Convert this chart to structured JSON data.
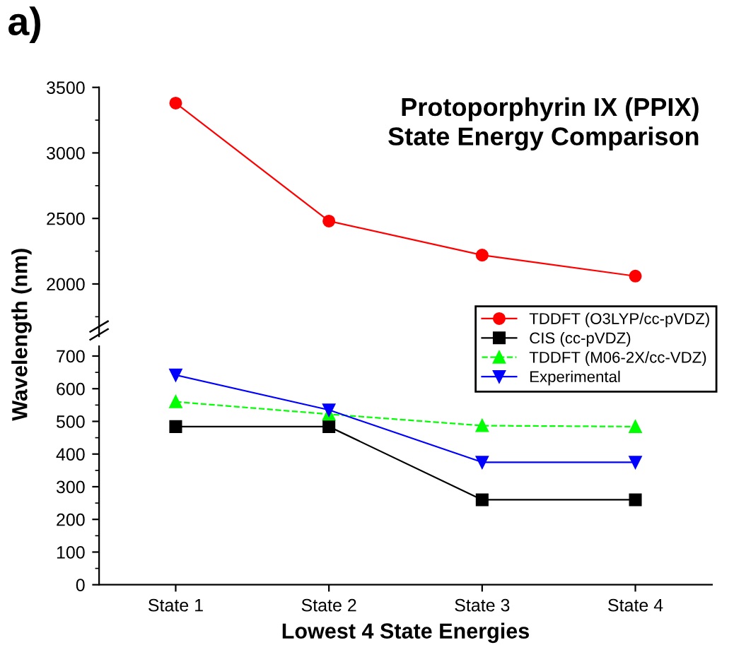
{
  "chart_data": [
    {
      "type": "line",
      "title": "Protoporphyrin IX (PPIX)\nState Energy Comparison",
      "annotations": [
        "a)"
      ],
      "categories": [
        null,
        null,
        null,
        null
      ],
      "ylim": [
        1600,
        3500
      ],
      "yticks": [
        2000,
        2500,
        3000,
        3500
      ],
      "tick_labels": "y",
      "grid": false,
      "series": [
        {
          "name": "TDDFT (O3LYP/cc-pVDZ)",
          "color": "#ff0000",
          "values": [
            3380,
            2480,
            2220,
            2060
          ],
          "marker": "circle",
          "line_style": "solid"
        }
      ]
    },
    {
      "type": "line",
      "categories": [
        "State 1",
        "State 2",
        "State 3",
        "State 4"
      ],
      "xlabel": "Lowest 4 State Energies",
      "ylabel": "Wavelength (nm)",
      "ylim": [
        0,
        730
      ],
      "yticks": [
        0,
        100,
        200,
        300,
        400,
        500,
        600,
        700
      ],
      "grid": false,
      "legend": "top right",
      "series": [
        {
          "name": "CIS (cc-pVDZ)",
          "color": "#000000",
          "values": [
            484,
            484,
            260,
            260
          ],
          "marker": "square",
          "line_style": "solid"
        },
        {
          "name": "TDDFT (M06-2X/cc-VDZ)",
          "color": "#00ff00",
          "values": [
            560,
            522,
            487,
            484
          ],
          "marker": "triangle",
          "line_style": "dashed"
        },
        {
          "name": "Experimental",
          "color": "#0000ff",
          "values": [
            642,
            535,
            375,
            375
          ],
          "marker": "triangle_down",
          "line_style": "solid"
        }
      ]
    }
  ]
}
